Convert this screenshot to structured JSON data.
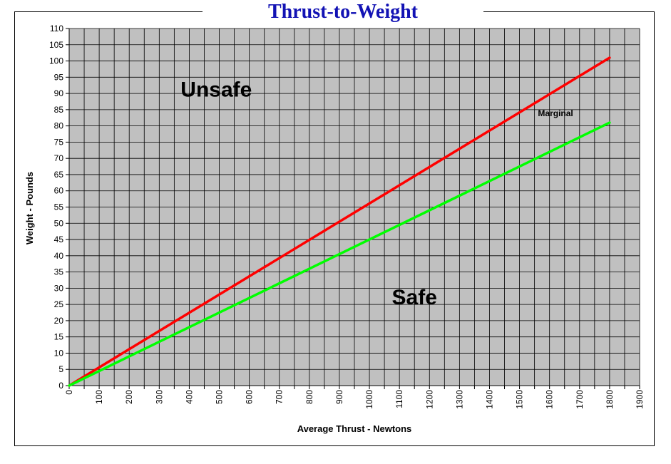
{
  "chart_data": {
    "type": "line",
    "title": "Thrust-to-Weight",
    "xlabel": "Average Thrust - Newtons",
    "ylabel": "Weight - Pounds",
    "xlim": [
      0,
      1900
    ],
    "ylim": [
      0,
      110
    ],
    "xticks": [
      0,
      100,
      200,
      300,
      400,
      500,
      600,
      700,
      800,
      900,
      1000,
      1100,
      1200,
      1300,
      1400,
      1500,
      1600,
      1700,
      1800,
      1900
    ],
    "yticks": [
      0,
      5,
      10,
      15,
      20,
      25,
      30,
      35,
      40,
      45,
      50,
      55,
      60,
      65,
      70,
      75,
      80,
      85,
      90,
      95,
      100,
      105,
      110
    ],
    "grid": true,
    "plot_background": "#c0c0c0",
    "series": [
      {
        "color": "#ff0000",
        "x": [
          0,
          1800
        ],
        "y": [
          0,
          101
        ]
      },
      {
        "color": "#00ff00",
        "x": [
          0,
          1800
        ],
        "y": [
          0,
          81
        ]
      }
    ],
    "annotations": [
      {
        "text": "Unsafe",
        "x": 490,
        "y": 89,
        "size": "large"
      },
      {
        "text": "Safe",
        "x": 1150,
        "y": 25,
        "size": "large"
      },
      {
        "text": "Marginal",
        "x": 1620,
        "y": 83,
        "size": "small"
      }
    ]
  }
}
